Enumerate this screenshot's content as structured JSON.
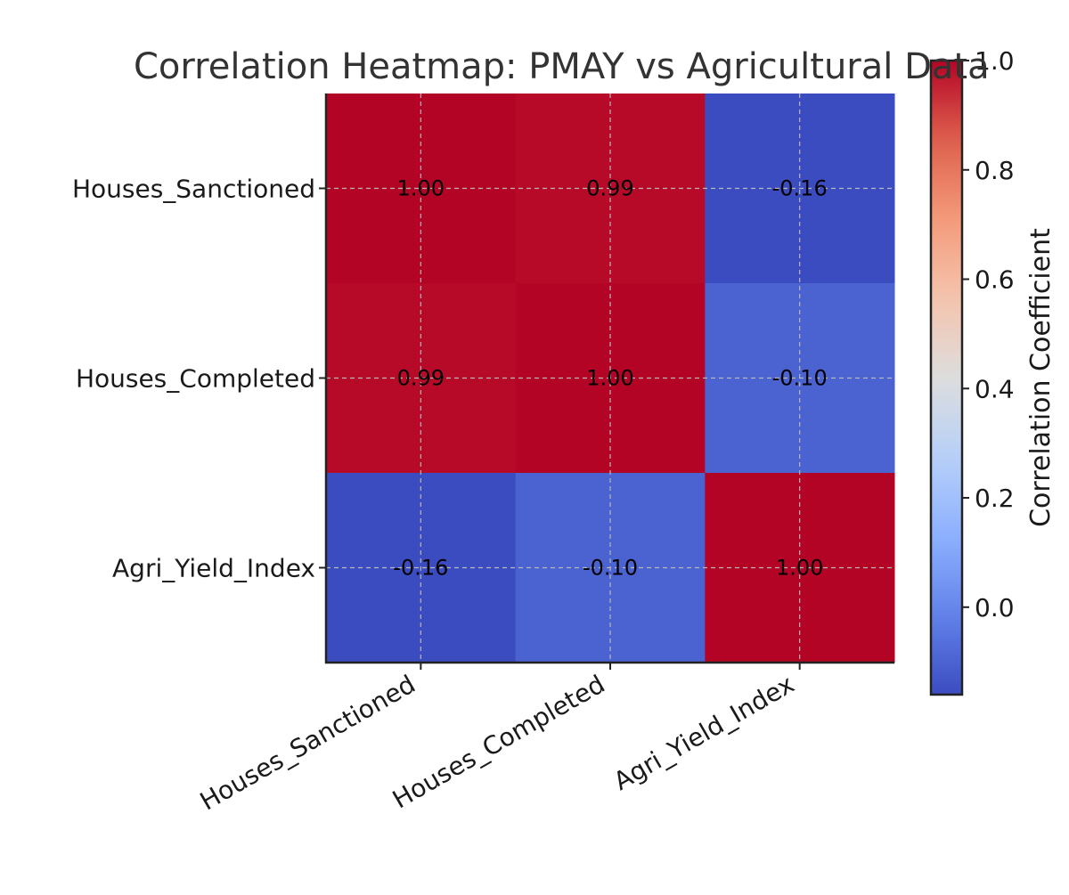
{
  "chart_data": {
    "type": "heatmap",
    "title": "Correlation Heatmap: PMAY vs Agricultural Data",
    "x_labels": [
      "Houses_Sanctioned",
      "Houses_Completed",
      "Agri_Yield_Index"
    ],
    "y_labels": [
      "Houses_Sanctioned",
      "Houses_Completed",
      "Agri_Yield_Index"
    ],
    "values": [
      [
        1.0,
        0.99,
        -0.16
      ],
      [
        0.99,
        1.0,
        -0.1
      ],
      [
        -0.16,
        -0.1,
        1.0
      ]
    ],
    "colormap": "coolwarm",
    "grid": true,
    "colorbar": {
      "label": "Correlation Coefficient",
      "range": [
        -0.16,
        1.0
      ],
      "ticks": [
        0.0,
        0.2,
        0.4,
        0.6,
        0.8,
        1.0
      ],
      "tick_labels": [
        "0.0",
        "0.2",
        "0.4",
        "0.6",
        "0.8",
        "1.0"
      ],
      "position": "right"
    }
  }
}
